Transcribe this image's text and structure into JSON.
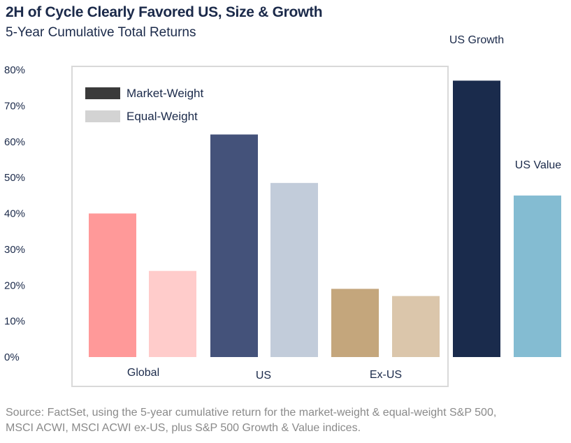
{
  "header": {
    "title": "2H of Cycle Clearly Favored US, Size & Growth",
    "subtitle": "5-Year Cumulative Total Returns"
  },
  "footer": {
    "source_line1": "Source: FactSet, using the 5-year cumulative return for the market-weight & equal-weight S&P 500,",
    "source_line2": "MSCI ACWI, MSCI ACWI ex-US, plus S&P 500 Growth & Value indices."
  },
  "chart_data": {
    "type": "bar",
    "title": "2H of Cycle Clearly Favored US, Size & Growth",
    "subtitle": "5-Year Cumulative Total Returns",
    "xlabel": "",
    "ylabel": "",
    "ylim": [
      0,
      80
    ],
    "yticks": [
      "0%",
      "10%",
      "20%",
      "30%",
      "40%",
      "50%",
      "60%",
      "70%",
      "80%"
    ],
    "grid": false,
    "legend": {
      "placement": "top-left",
      "entries": [
        {
          "label": "Market-Weight",
          "color": "#3a3a3a"
        },
        {
          "label": "Equal-Weight",
          "color": "#d3d3d3"
        }
      ]
    },
    "bars": [
      {
        "group": "Global",
        "series": "Market-Weight",
        "value": 40,
        "color": "#ff9999"
      },
      {
        "group": "Global",
        "series": "Equal-Weight",
        "value": 24,
        "color": "#ffcccb"
      },
      {
        "group": "US",
        "series": "Market-Weight",
        "value": 62,
        "color": "#44527a"
      },
      {
        "group": "US",
        "series": "Equal-Weight",
        "value": 48.5,
        "color": "#c2ccda"
      },
      {
        "group": "Ex-US",
        "series": "Market-Weight",
        "value": 19,
        "color": "#c4a67c"
      },
      {
        "group": "Ex-US",
        "series": "Equal-Weight",
        "value": 17,
        "color": "#dbc6ab"
      },
      {
        "group": "US Growth",
        "series": "",
        "value": 77,
        "color": "#1a2b4c"
      },
      {
        "group": "US Value",
        "series": "",
        "value": 45,
        "color": "#84bcd2"
      }
    ],
    "category_labels": [
      "Global",
      "US",
      "Ex-US"
    ],
    "annotations": [
      "US Growth",
      "US Value"
    ]
  }
}
